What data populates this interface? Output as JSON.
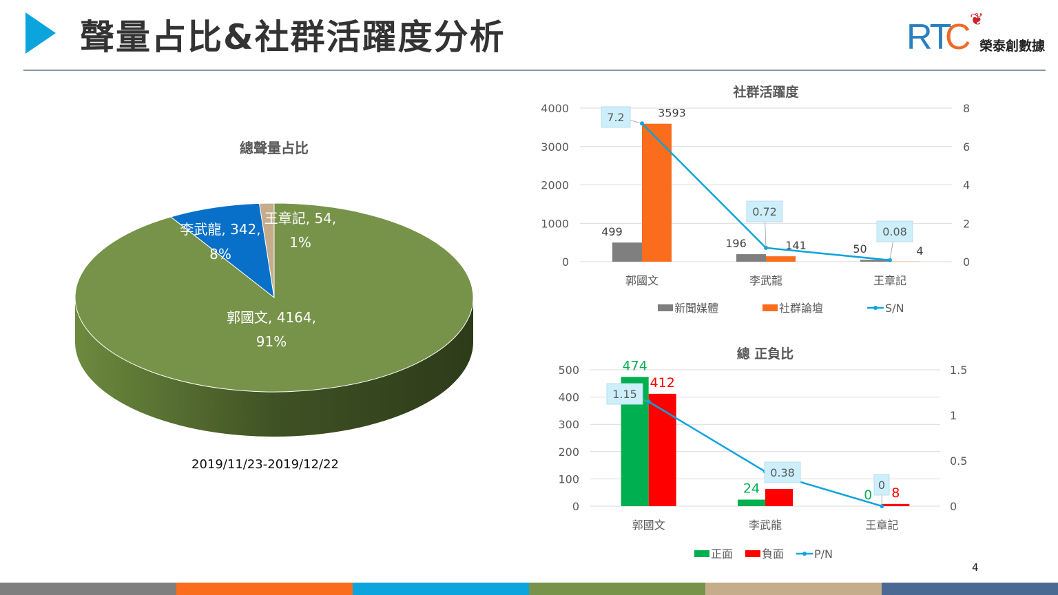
{
  "header": {
    "title": "聲量占比&社群活躍度分析",
    "logo_text": "RTC",
    "logo_name": "榮泰創數據"
  },
  "page_number": "4",
  "date_range": "2019/11/23-2019/12/22",
  "strip_colors": [
    "#7f7f7f",
    "#f96d1c",
    "#0ca4dc",
    "#77934a",
    "#c5ad8c",
    "#4a6a93"
  ],
  "chart_data": [
    {
      "type": "pie",
      "title": "總聲量占比",
      "slices": [
        {
          "name": "郭國文",
          "value": 4164,
          "percent": "91%",
          "label": "郭國文, 4164,",
          "label2": "91%",
          "color": "#77934a"
        },
        {
          "name": "李武龍",
          "value": 342,
          "percent": "8%",
          "label": "李武龍, 342,",
          "label2": "8%",
          "color": "#0870c8"
        },
        {
          "name": "王章記",
          "value": 54,
          "percent": "1%",
          "label": "王章記, 54,",
          "label2": "1%",
          "color": "#c5ad8c"
        }
      ]
    },
    {
      "type": "bar",
      "title": "社群活躍度",
      "categories": [
        "郭國文",
        "李武龍",
        "王章記"
      ],
      "series": [
        {
          "name": "新聞媒體",
          "values": [
            499,
            196,
            50
          ],
          "color": "#7f7f7f",
          "label_color": "#404040"
        },
        {
          "name": "社群論壇",
          "values": [
            3593,
            141,
            4
          ],
          "color": "#f96d1c",
          "label_color": "#404040"
        }
      ],
      "line": {
        "name": "S/N",
        "values": [
          7.2,
          0.72,
          0.08
        ],
        "labels": [
          "7.2",
          "0.72",
          "0.08"
        ],
        "color": "#0ca4dc"
      },
      "ylim": [
        0,
        4000
      ],
      "yticks": [
        "0",
        "1000",
        "2000",
        "3000",
        "4000"
      ],
      "y2lim": [
        0,
        8
      ],
      "y2ticks": [
        "0",
        "2",
        "4",
        "6",
        "8"
      ]
    },
    {
      "type": "bar",
      "title": "總 正負比",
      "categories": [
        "郭國文",
        "李武龍",
        "王章記"
      ],
      "series": [
        {
          "name": "正面",
          "values": [
            474,
            24,
            0
          ],
          "labels": [
            "474",
            "24",
            "0"
          ],
          "color": "#00b050",
          "label_color": "#00b050"
        },
        {
          "name": "負面",
          "values": [
            412,
            63,
            8
          ],
          "labels": [
            "412",
            "",
            "8"
          ],
          "color": "#ff0000",
          "label_color": "#ff0000"
        }
      ],
      "line": {
        "name": "P/N",
        "values": [
          1.15,
          0.38,
          0
        ],
        "labels": [
          "1.15",
          "0.38",
          "0"
        ],
        "color": "#0ca4dc"
      },
      "ylim": [
        0,
        500
      ],
      "yticks": [
        "0",
        "100",
        "200",
        "300",
        "400",
        "500"
      ],
      "y2lim": [
        0,
        1.5
      ],
      "y2ticks": [
        "0",
        "0.5",
        "1",
        "1.5"
      ]
    }
  ]
}
